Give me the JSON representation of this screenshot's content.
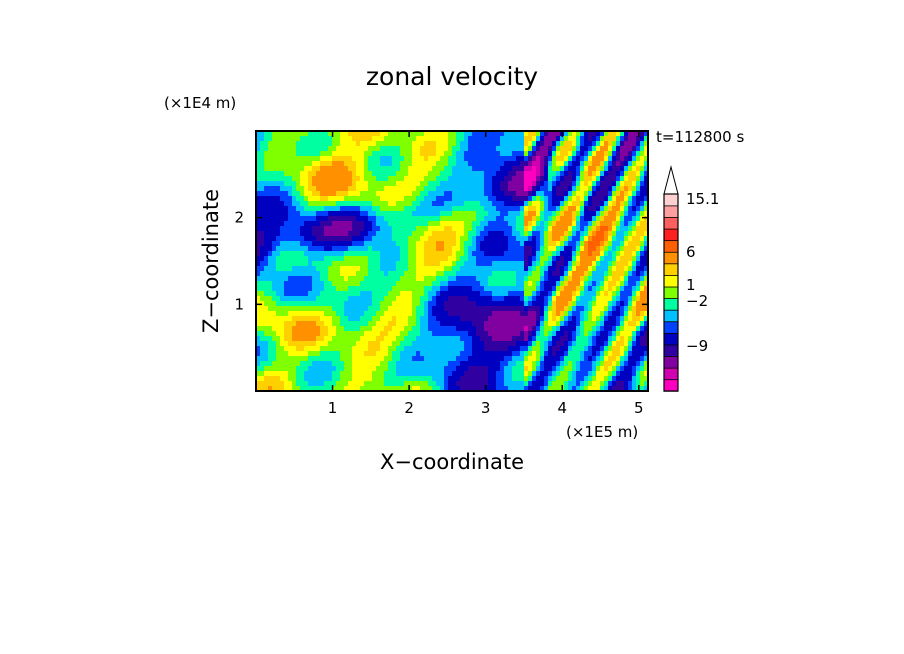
{
  "chart_data": {
    "type": "heatmap",
    "title": "zonal velocity",
    "xlabel": "X−coordinate",
    "ylabel": "Z−coordinate",
    "x_scale_label": "(×1E5 m)",
    "y_scale_label": "(×1E4 m)",
    "time_label": "t=112800 s",
    "xlim": [
      0,
      5.12
    ],
    "ylim": [
      0,
      3.0
    ],
    "x_ticks": [
      1,
      2,
      3,
      4,
      5
    ],
    "y_ticks": [
      1,
      2
    ],
    "x_tick_labels": [
      "1",
      "2",
      "3",
      "4",
      "5"
    ],
    "y_tick_labels": [
      "1",
      "2"
    ],
    "grid": false,
    "colorbar": {
      "levels_bottom_to_top": [
        {
          "color": "#ff00c0"
        },
        {
          "color": "#d000b0"
        },
        {
          "color": "#8000a0"
        },
        {
          "color": "#3000a0"
        },
        {
          "color": "#0000c0"
        },
        {
          "color": "#0040ff"
        },
        {
          "color": "#00c0ff"
        },
        {
          "color": "#00ffa0"
        },
        {
          "color": "#80ff00"
        },
        {
          "color": "#ffff00"
        },
        {
          "color": "#ffd000"
        },
        {
          "color": "#ff9000"
        },
        {
          "color": "#ff6000"
        },
        {
          "color": "#ff2020"
        },
        {
          "color": "#ff6060"
        },
        {
          "color": "#ffa0a0"
        },
        {
          "color": "#ffd0d0"
        }
      ],
      "labels": [
        "15.1",
        "6",
        "1",
        "−2",
        "−9"
      ],
      "extend": "max"
    }
  }
}
